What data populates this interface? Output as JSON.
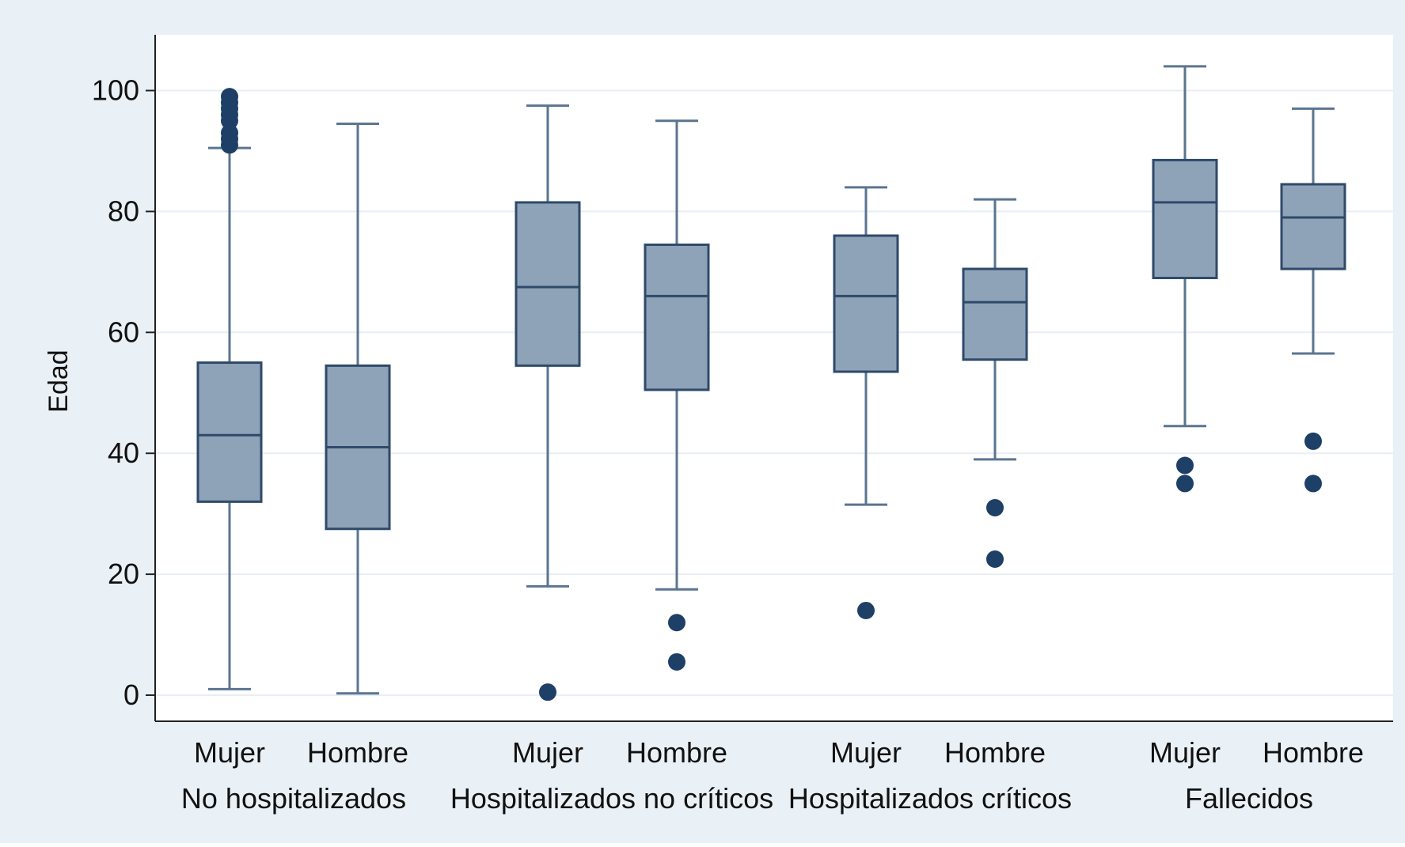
{
  "chart_data": {
    "type": "box",
    "ylabel": "Edad",
    "ylim": [
      0,
      105
    ],
    "yticks": [
      0,
      20,
      40,
      60,
      80,
      100
    ],
    "grid": true,
    "colors": {
      "box_fill": "#8fa3b8",
      "box_stroke": "#2e4a6a",
      "whisker": "#5a7590",
      "outlier": "#1e3f66",
      "gridline": "#e8eef3",
      "plot_bg": "#ffffff",
      "frame_bg": "#eaf1f6"
    },
    "groups": [
      {
        "name": "No hospitalizados",
        "boxes": [
          {
            "label": "Mujer",
            "whisker_low": 1,
            "q1": 32,
            "median": 43,
            "q3": 55,
            "whisker_high": 90.5,
            "outliers": [
              91,
              92,
              93,
              95,
              96,
              97,
              98,
              99
            ]
          },
          {
            "label": "Hombre",
            "whisker_low": 0.3,
            "q1": 27.5,
            "median": 41,
            "q3": 54.5,
            "whisker_high": 94.5,
            "outliers": []
          }
        ]
      },
      {
        "name": "Hospitalizados no críticos",
        "boxes": [
          {
            "label": "Mujer",
            "whisker_low": 18,
            "q1": 54.5,
            "median": 67.5,
            "q3": 81.5,
            "whisker_high": 97.5,
            "outliers": [
              0.5
            ]
          },
          {
            "label": "Hombre",
            "whisker_low": 17.5,
            "q1": 50.5,
            "median": 66,
            "q3": 74.5,
            "whisker_high": 95,
            "outliers": [
              5.5,
              12
            ]
          }
        ]
      },
      {
        "name": "Hospitalizados críticos",
        "boxes": [
          {
            "label": "Mujer",
            "whisker_low": 31.5,
            "q1": 53.5,
            "median": 66,
            "q3": 76,
            "whisker_high": 84,
            "outliers": [
              14
            ]
          },
          {
            "label": "Hombre",
            "whisker_low": 39,
            "q1": 55.5,
            "median": 65,
            "q3": 70.5,
            "whisker_high": 82,
            "outliers": [
              22.5,
              31
            ]
          }
        ]
      },
      {
        "name": "Fallecidos",
        "boxes": [
          {
            "label": "Mujer",
            "whisker_low": 44.5,
            "q1": 69,
            "median": 81.5,
            "q3": 88.5,
            "whisker_high": 104,
            "outliers": [
              35,
              38
            ]
          },
          {
            "label": "Hombre",
            "whisker_low": 56.5,
            "q1": 70.5,
            "median": 79,
            "q3": 84.5,
            "whisker_high": 97,
            "outliers": [
              35,
              42
            ]
          }
        ]
      }
    ]
  }
}
